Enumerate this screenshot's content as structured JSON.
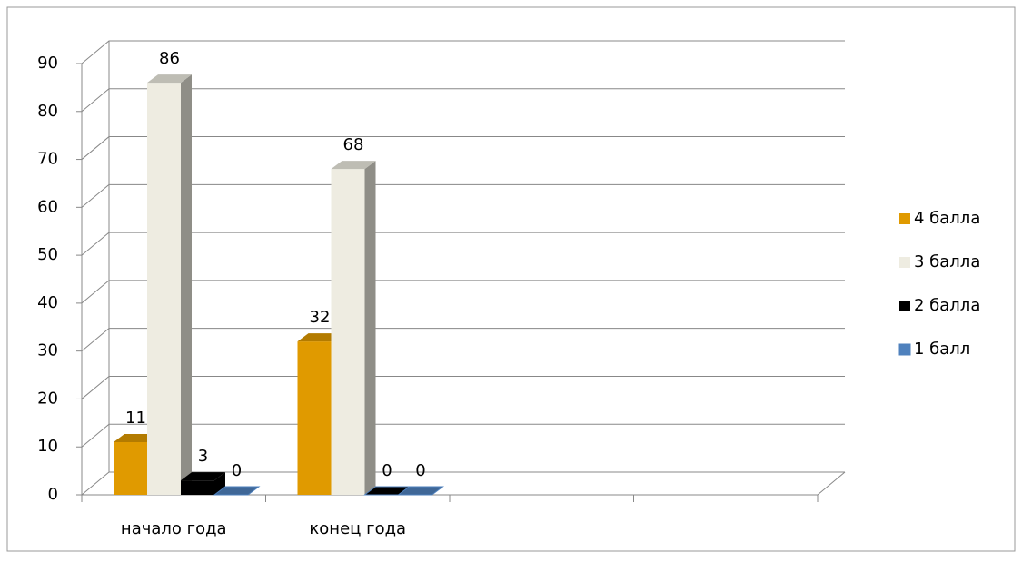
{
  "chart_data": {
    "type": "bar3d",
    "categories": [
      "начало года",
      "конец года",
      null,
      null
    ],
    "series": [
      {
        "name": "4 балла",
        "color": "#e09a00",
        "values": [
          11,
          32,
          null,
          null
        ]
      },
      {
        "name": "3 балла",
        "color": "#eeece1",
        "values": [
          86,
          68,
          null,
          null
        ]
      },
      {
        "name": "2 балла",
        "color": "#000000",
        "values": [
          3,
          0,
          null,
          null
        ]
      },
      {
        "name": "1 балл",
        "color": "#4f81bd",
        "values": [
          0,
          0,
          null,
          null
        ]
      }
    ],
    "ylim": [
      0,
      90
    ],
    "yticks": [
      0,
      10,
      20,
      30,
      40,
      50,
      60,
      70,
      80,
      90
    ],
    "grid": true,
    "legend": "right"
  }
}
